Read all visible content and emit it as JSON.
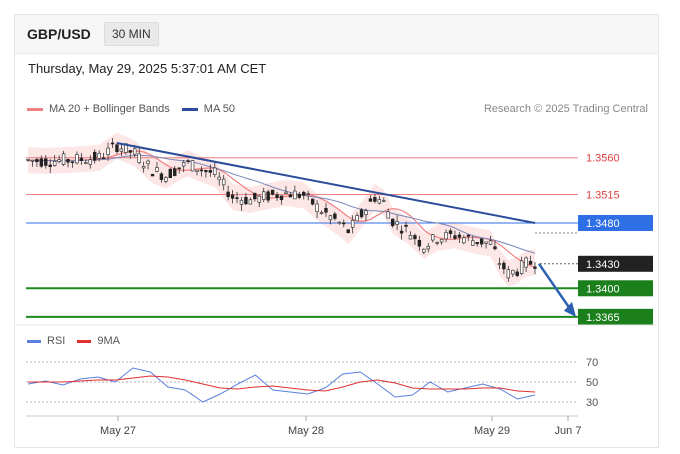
{
  "header": {
    "pair": "GBP/USD",
    "timeframe": "30 MIN"
  },
  "date_text": "Thursday, May 29, 2025 5:37:01 AM CET",
  "legend": {
    "ma20": {
      "label": "MA 20 + Bollinger Bands",
      "color": "#f08080"
    },
    "ma50": {
      "label": "MA 50",
      "color": "#2b4c9a"
    }
  },
  "credit": "Research © 2025 Trading Central",
  "rsi_legend": {
    "rsi": {
      "label": "RSI",
      "color": "#5b7fe0"
    },
    "ma9": {
      "label": "9MA",
      "color": "#e03030"
    }
  },
  "chart_data": {
    "type": "candlestick",
    "instrument": "GBP/USD",
    "timeframe": "30 MIN",
    "x_labels": [
      "May 27",
      "May 28",
      "May 29",
      "Jun 7"
    ],
    "price_range": [
      1.3355,
      1.3605
    ],
    "levels": [
      {
        "value": 1.356,
        "label": "1.3560",
        "style": "resistance",
        "color": "#f08080"
      },
      {
        "value": 1.3515,
        "label": "1.3515",
        "style": "resistance",
        "color": "#f08080"
      },
      {
        "value": 1.348,
        "label": "1.3480",
        "style": "pivot",
        "color": "#2f6fe6"
      },
      {
        "value": 1.343,
        "label": "1.3430",
        "style": "last-price",
        "color": "#222222"
      },
      {
        "value": 1.34,
        "label": "1.3400",
        "style": "support",
        "color": "#1e8a1e"
      },
      {
        "value": 1.3365,
        "label": "1.3365",
        "style": "support",
        "color": "#1e8a1e"
      }
    ],
    "price_path": [
      [
        0,
        1.3557
      ],
      [
        4,
        1.3556
      ],
      [
        8,
        1.3557
      ],
      [
        12,
        1.3558
      ],
      [
        16,
        1.356
      ],
      [
        20,
        1.3575
      ],
      [
        24,
        1.3565
      ],
      [
        28,
        1.3545
      ],
      [
        31,
        1.3538
      ],
      [
        34,
        1.3548
      ],
      [
        36,
        1.3553
      ],
      [
        38,
        1.3548
      ],
      [
        42,
        1.354
      ],
      [
        46,
        1.3512
      ],
      [
        50,
        1.3508
      ],
      [
        54,
        1.3513
      ],
      [
        58,
        1.3517
      ],
      [
        62,
        1.3514
      ],
      [
        66,
        1.3495
      ],
      [
        70,
        1.348
      ],
      [
        72,
        1.347
      ],
      [
        75,
        1.349
      ],
      [
        78,
        1.3512
      ],
      [
        80,
        1.3505
      ],
      [
        82,
        1.3483
      ],
      [
        86,
        1.3468
      ],
      [
        89,
        1.3452
      ],
      [
        92,
        1.3462
      ],
      [
        96,
        1.3465
      ],
      [
        100,
        1.3459
      ],
      [
        104,
        1.3455
      ],
      [
        106,
        1.3432
      ],
      [
        108,
        1.3418
      ],
      [
        110,
        1.3422
      ],
      [
        112,
        1.343
      ],
      [
        114,
        1.3432
      ]
    ],
    "trendline": {
      "from": [
        20,
        1.3578
      ],
      "to": [
        114,
        1.348
      ],
      "color": "#2b4c9a"
    },
    "projection": {
      "from": [
        114,
        1.343
      ],
      "to": [
        123,
        1.3365
      ],
      "color": "#2b5fb0"
    },
    "rsi": {
      "levels": [
        70,
        50,
        30
      ],
      "rsi_values": [
        48,
        51,
        47,
        53,
        55,
        50,
        64,
        60,
        45,
        42,
        30,
        38,
        48,
        57,
        42,
        40,
        38,
        44,
        58,
        60,
        48,
        35,
        37,
        50,
        40,
        44,
        48,
        43,
        33,
        37
      ],
      "ma_values": [
        50,
        50,
        50,
        51,
        52,
        52,
        54,
        56,
        55,
        52,
        48,
        44,
        43,
        45,
        46,
        44,
        42,
        41,
        45,
        50,
        52,
        49,
        44,
        43,
        43,
        43,
        44,
        44,
        41,
        40
      ]
    }
  }
}
